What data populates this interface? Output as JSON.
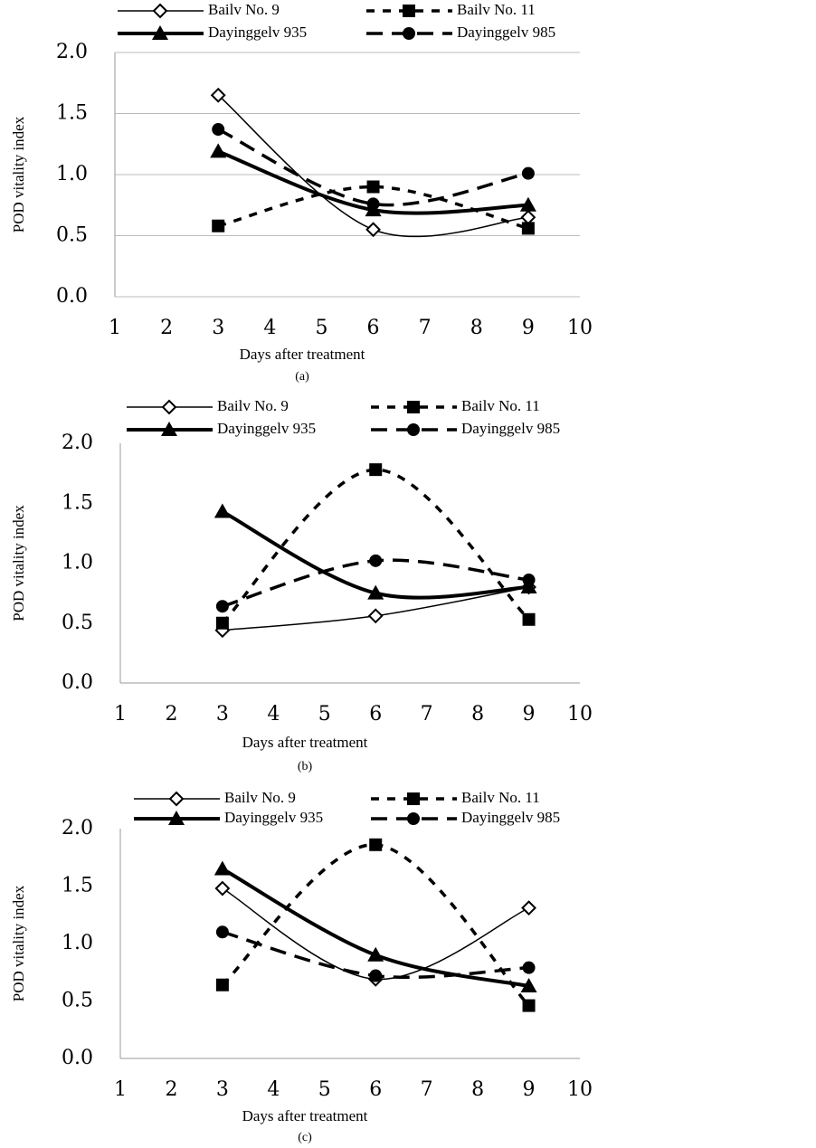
{
  "chart_data": [
    {
      "type": "line",
      "caption": "(a)",
      "x_label": "Days after treatment",
      "y_label": "POD vitality index",
      "x": [
        3,
        6,
        9
      ],
      "xlim": [
        1,
        10
      ],
      "xticks": [
        1,
        2,
        3,
        4,
        5,
        6,
        7,
        8,
        9,
        10
      ],
      "ylim": [
        0,
        2
      ],
      "yticks": [
        {
          "value": 0,
          "label": "0.0"
        },
        0.5,
        {
          "value": 1,
          "label": "1.0"
        },
        1.5,
        {
          "value": 2,
          "label": "2.0"
        }
      ],
      "grid": true,
      "series": [
        {
          "name": "Bailv No. 9",
          "color": "#000000",
          "marker": "diamond",
          "values": [
            1.65,
            0.55,
            0.65
          ]
        },
        {
          "name": "Bailv No. 11",
          "color": "#000000",
          "marker": "square",
          "values": [
            0.58,
            0.9,
            0.56
          ]
        },
        {
          "name": "Dayinggelv 935",
          "color": "#000000",
          "marker": "triangle",
          "values": [
            1.19,
            0.71,
            0.75
          ]
        },
        {
          "name": "Dayinggelv 985",
          "color": "#000000",
          "marker": "circle",
          "values": [
            1.37,
            0.76,
            1.01
          ]
        }
      ]
    },
    {
      "type": "line",
      "caption": "(b)",
      "x_label": "Days after treatment",
      "y_label": "POD vitality index",
      "x": [
        3,
        6,
        9
      ],
      "xlim": [
        1,
        10
      ],
      "xticks": [
        1,
        2,
        3,
        4,
        5,
        6,
        7,
        8,
        9,
        10
      ],
      "ylim": [
        0,
        2
      ],
      "yticks": [
        {
          "value": 0,
          "label": "0.0"
        },
        0.5,
        {
          "value": 1,
          "label": "1.0"
        },
        1.5,
        {
          "value": 2,
          "label": "2.0"
        }
      ],
      "grid": false,
      "series": [
        {
          "name": "Bailv No. 9",
          "color": "#000000",
          "marker": "diamond",
          "values": [
            0.44,
            0.56,
            0.8
          ]
        },
        {
          "name": "Bailv No. 11",
          "color": "#000000",
          "marker": "square",
          "values": [
            0.5,
            1.78,
            0.53
          ]
        },
        {
          "name": "Dayinggelv 935",
          "color": "#000000",
          "marker": "triangle",
          "values": [
            1.43,
            0.75,
            0.8
          ]
        },
        {
          "name": "Dayinggelv 985",
          "color": "#000000",
          "marker": "circle",
          "values": [
            0.64,
            1.02,
            0.86
          ]
        }
      ]
    },
    {
      "type": "line",
      "caption": "(c)",
      "x_label": "Days after treatment",
      "y_label": "POD vitality index",
      "x": [
        3,
        6,
        9
      ],
      "xlim": [
        1,
        10
      ],
      "xticks": [
        1,
        2,
        3,
        4,
        5,
        6,
        7,
        8,
        9,
        10
      ],
      "ylim": [
        0,
        2
      ],
      "yticks": [
        {
          "value": 0,
          "label": "0.0"
        },
        0.5,
        {
          "value": 1,
          "label": "1.0"
        },
        1.5,
        {
          "value": 2,
          "label": "2.0"
        }
      ],
      "grid": false,
      "series": [
        {
          "name": "Bailv No. 9",
          "color": "#000000",
          "marker": "diamond",
          "values": [
            1.48,
            0.69,
            1.31
          ]
        },
        {
          "name": "Bailv No. 11",
          "color": "#000000",
          "marker": "square",
          "values": [
            0.64,
            1.86,
            0.46
          ]
        },
        {
          "name": "Dayinggelv 935",
          "color": "#000000",
          "marker": "triangle",
          "values": [
            1.65,
            0.9,
            0.63
          ]
        },
        {
          "name": "Dayinggelv 985",
          "color": "#000000",
          "marker": "circle",
          "values": [
            1.1,
            0.72,
            0.79
          ]
        }
      ]
    }
  ]
}
